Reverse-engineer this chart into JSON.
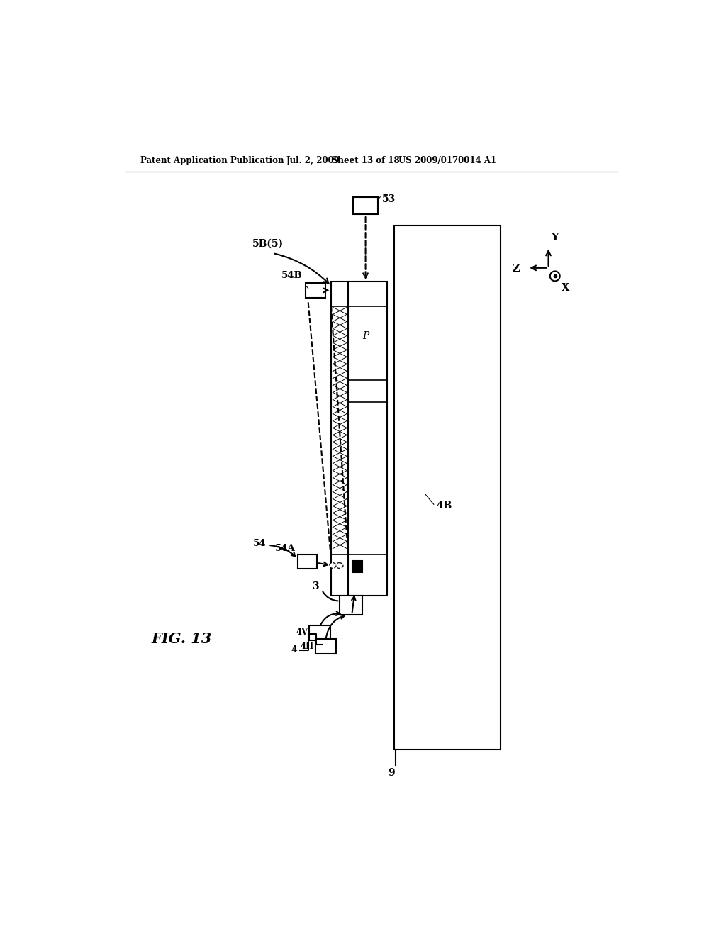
{
  "bg_color": "#ffffff",
  "header_text": "Patent Application Publication",
  "header_date": "Jul. 2, 2009",
  "header_sheet": "Sheet 13 of 18",
  "header_patent": "US 2009/0170014 A1",
  "figure_label": "FIG. 13"
}
